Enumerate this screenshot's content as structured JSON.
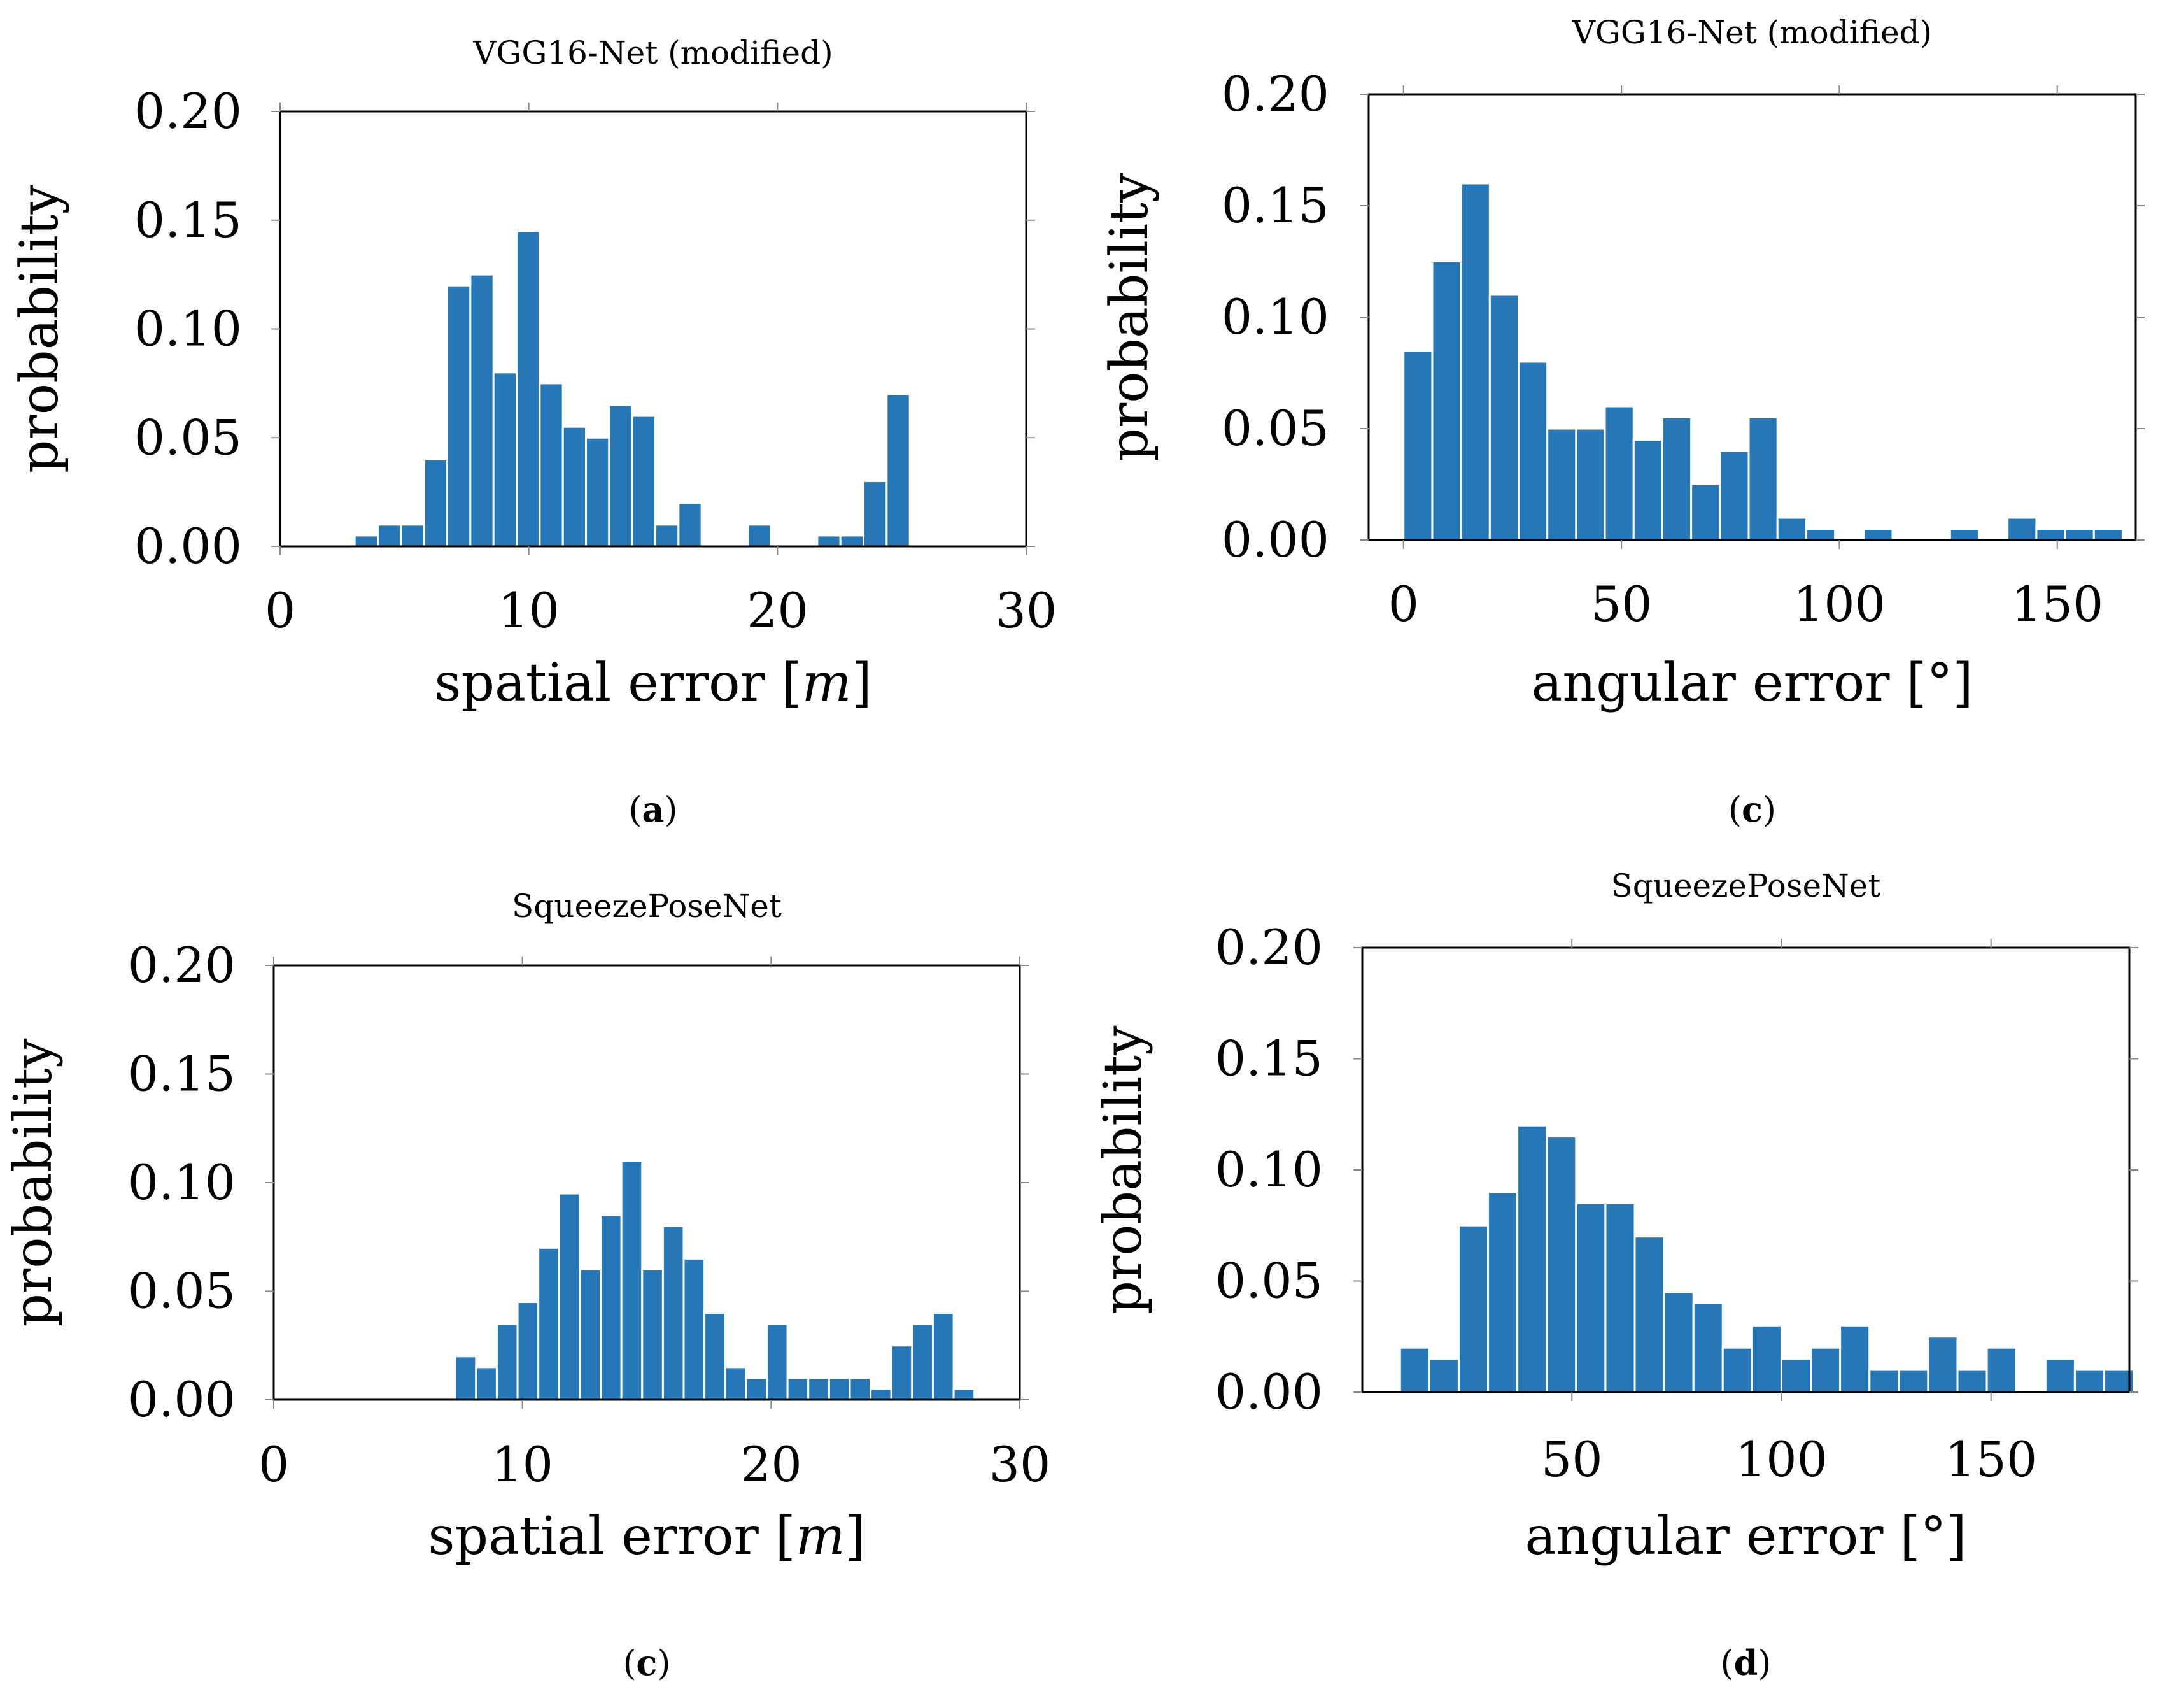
{
  "chart_data": [
    {
      "type": "bar",
      "title": "VGG16-Net (modified)",
      "xlabel": "spatial error [m]",
      "xlabel_prefix": "spatial error [",
      "xlabel_unit": "m",
      "xlabel_suffix": "]",
      "ylabel": "probability",
      "caption_letter": "a",
      "xlim": [
        0,
        30
      ],
      "ylim": [
        0,
        0.2
      ],
      "xticks": [
        0,
        10,
        20,
        30
      ],
      "xtick_labels": [
        "0",
        "10",
        "20",
        "30"
      ],
      "yticks": [
        0,
        0.05,
        0.1,
        0.15,
        0.2
      ],
      "ytick_labels": [
        "0.00",
        "0.05",
        "0.10",
        "0.15",
        "0.20"
      ],
      "bin_start": 3.0,
      "bin_width": 0.93,
      "values": [
        0.005,
        0.01,
        0.01,
        0.04,
        0.12,
        0.125,
        0.08,
        0.145,
        0.075,
        0.055,
        0.05,
        0.065,
        0.06,
        0.01,
        0.02,
        0,
        0,
        0.01,
        0,
        0,
        0.005,
        0.005,
        0.03,
        0.07
      ]
    },
    {
      "type": "bar",
      "title": "VGG16-Net (modified)",
      "xlabel": "angular error [°]",
      "xlabel_prefix": "angular error [°]",
      "xlabel_unit": "",
      "xlabel_suffix": "",
      "ylabel": "probability",
      "caption_letter": "c",
      "xlim": [
        -8,
        168
      ],
      "ylim": [
        0,
        0.2
      ],
      "xticks": [
        0,
        50,
        100,
        150
      ],
      "xtick_labels": [
        "0",
        "50",
        "100",
        "150"
      ],
      "yticks": [
        0,
        0.05,
        0.1,
        0.15,
        0.2
      ],
      "ytick_labels": [
        "0.00",
        "0.05",
        "0.10",
        "0.15",
        "0.20"
      ],
      "bin_start": 0.0,
      "bin_width": 6.6,
      "values": [
        0.085,
        0.125,
        0.16,
        0.11,
        0.08,
        0.05,
        0.05,
        0.06,
        0.045,
        0.055,
        0.025,
        0.04,
        0.055,
        0.01,
        0.005,
        0,
        0.005,
        0,
        0,
        0.005,
        0,
        0.01,
        0.005,
        0.005,
        0.005
      ]
    },
    {
      "type": "bar",
      "title": "SqueezePoseNet",
      "xlabel": "spatial error [m]",
      "xlabel_prefix": "spatial error [",
      "xlabel_unit": "m",
      "xlabel_suffix": "]",
      "ylabel": "probability",
      "caption_letter": "c",
      "xlim": [
        0,
        30
      ],
      "ylim": [
        0,
        0.2
      ],
      "xticks": [
        0,
        10,
        20,
        30
      ],
      "xtick_labels": [
        "0",
        "10",
        "20",
        "30"
      ],
      "yticks": [
        0,
        0.05,
        0.1,
        0.15,
        0.2
      ],
      "ytick_labels": [
        "0.00",
        "0.05",
        "0.10",
        "0.15",
        "0.20"
      ],
      "bin_start": 7.3,
      "bin_width": 0.835,
      "values": [
        0.02,
        0.015,
        0.035,
        0.045,
        0.07,
        0.095,
        0.06,
        0.085,
        0.11,
        0.06,
        0.08,
        0.065,
        0.04,
        0.015,
        0.01,
        0.035,
        0.01,
        0.01,
        0.01,
        0.01,
        0.005,
        0.025,
        0.035,
        0.04,
        0.005
      ]
    },
    {
      "type": "bar",
      "title": "SqueezePoseNet",
      "xlabel": "angular error [°]",
      "xlabel_prefix": "angular error [°]",
      "xlabel_unit": "",
      "xlabel_suffix": "",
      "ylabel": "probability",
      "caption_letter": "d",
      "xlim": [
        0,
        183
      ],
      "ylim": [
        0,
        0.2
      ],
      "xticks": [
        50,
        100,
        150
      ],
      "xtick_labels": [
        "50",
        "100",
        "150"
      ],
      "yticks": [
        0,
        0.05,
        0.1,
        0.15,
        0.2
      ],
      "ytick_labels": [
        "0.00",
        "0.05",
        "0.10",
        "0.15",
        "0.20"
      ],
      "bin_start": 9.0,
      "bin_width": 7.0,
      "values": [
        0.02,
        0.015,
        0.075,
        0.09,
        0.12,
        0.115,
        0.085,
        0.085,
        0.07,
        0.045,
        0.04,
        0.02,
        0.03,
        0.015,
        0.02,
        0.03,
        0.01,
        0.01,
        0.025,
        0.01,
        0.02,
        0,
        0.015,
        0.01,
        0.01
      ]
    }
  ]
}
